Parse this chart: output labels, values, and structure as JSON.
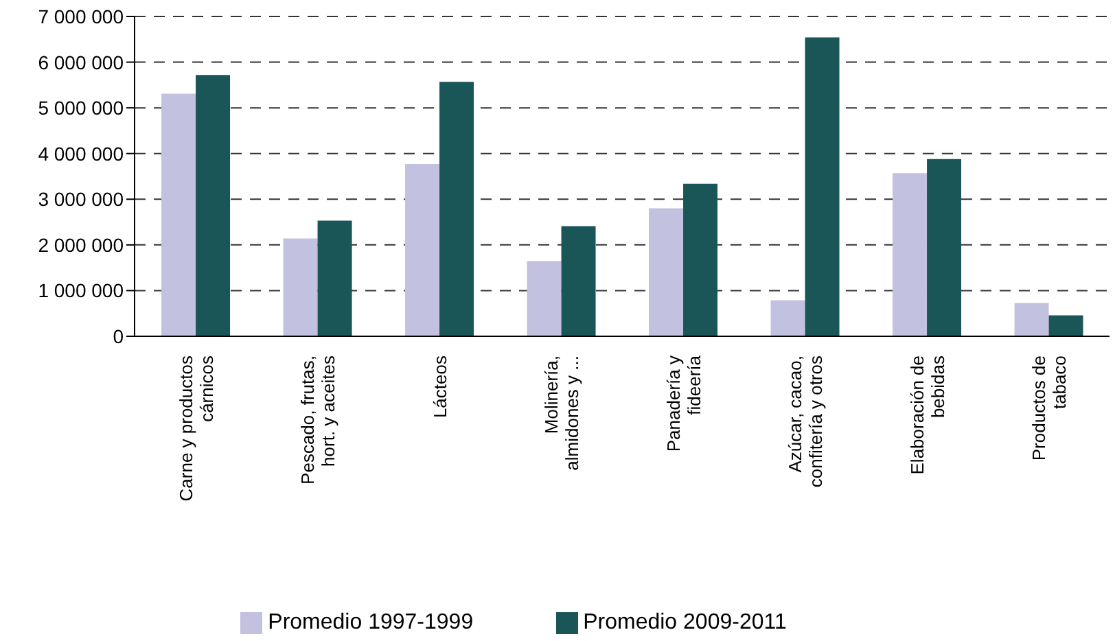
{
  "chart_data": {
    "type": "bar",
    "categories": [
      "Carne y productos cárnicos",
      "Pescado, frutas, hort. y aceites",
      "Lácteos",
      "Molinería, almidones y ...",
      "Panadería y fideería",
      "Azúcar, cacao, confitería y otros",
      "Elaboración de bebidas",
      "Productos de tabaco"
    ],
    "series": [
      {
        "name": "Promedio 1997-1999",
        "color": "#c3c1e0",
        "values": [
          5310000,
          2140000,
          3770000,
          1650000,
          2800000,
          790000,
          3570000,
          730000
        ]
      },
      {
        "name": "Promedio 2009-2011",
        "color": "#1a5558",
        "values": [
          5720000,
          2530000,
          5570000,
          2410000,
          3340000,
          6540000,
          3880000,
          460000
        ]
      }
    ],
    "ylim": [
      0,
      7000000
    ],
    "yticks": [
      {
        "value": 0,
        "label": "0"
      },
      {
        "value": 1000000,
        "label": "1 000 000"
      },
      {
        "value": 2000000,
        "label": "2 000 000"
      },
      {
        "value": 3000000,
        "label": "3 000 000"
      },
      {
        "value": 4000000,
        "label": "4 000 000"
      },
      {
        "value": 5000000,
        "label": "5 000 000"
      },
      {
        "value": 6000000,
        "label": "6 000 000"
      },
      {
        "value": 7000000,
        "label": "7 000 000"
      }
    ],
    "grid": "y",
    "legend": "bottom"
  }
}
